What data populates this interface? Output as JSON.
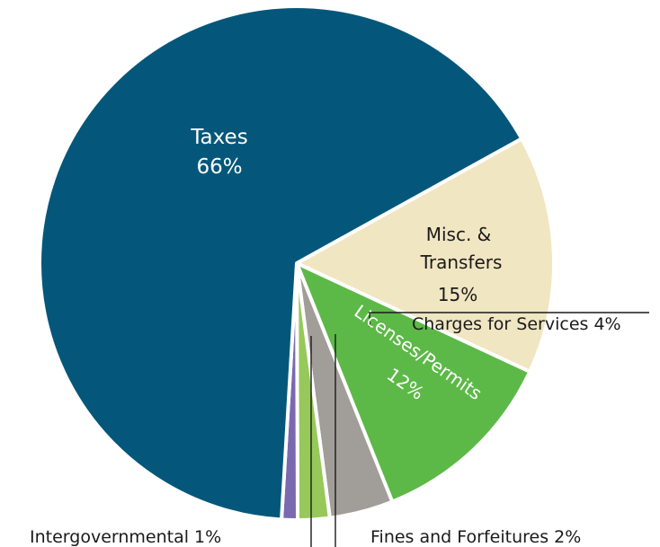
{
  "chart_data": {
    "type": "pie",
    "slices": [
      {
        "name": "Taxes",
        "line1": "Taxes",
        "line2": "",
        "pct_label": "66%",
        "value": 66,
        "color": "#04577a",
        "text_color": "#ffffff"
      },
      {
        "name": "Misc. & Transfers",
        "line1": "Misc. &",
        "line2": "Transfers",
        "pct_label": "15%",
        "value": 15,
        "color": "#f1e6c2",
        "text_color": "#1a1a1a"
      },
      {
        "name": "Licenses/Permits",
        "line1": "Licenses/Permits",
        "line2": "",
        "pct_label": "12%",
        "value": 12,
        "color": "#5cb947",
        "text_color": "#ffffff"
      },
      {
        "name": "Charges for Services",
        "line1": "Charges for Services 4%",
        "line2": "",
        "pct_label": "",
        "value": 4,
        "color": "#a19d98",
        "text_color": "#1a1a1a"
      },
      {
        "name": "Fines and Forfeitures",
        "line1": "Fines and Forfeitures 2%",
        "line2": "",
        "pct_label": "",
        "value": 2,
        "color": "#96c85a",
        "text_color": "#1a1a1a"
      },
      {
        "name": "Intergovernmental",
        "line1": "Intergovernmental 1%",
        "line2": "",
        "pct_label": "",
        "value": 1,
        "color": "#7b69b0",
        "text_color": "#1a1a1a"
      }
    ]
  }
}
